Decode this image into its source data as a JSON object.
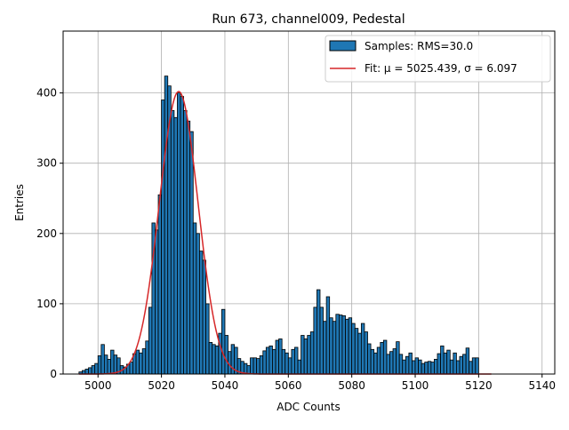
{
  "chart_data": {
    "type": "bar",
    "title": "Run 673, channel009, Pedestal",
    "xlabel": "ADC Counts",
    "ylabel": "Entries",
    "xlim": [
      4989,
      5144
    ],
    "ylim": [
      0,
      488
    ],
    "xticks": [
      5000,
      5020,
      5040,
      5060,
      5080,
      5100,
      5120,
      5140
    ],
    "yticks": [
      0,
      100,
      200,
      300,
      400
    ],
    "grid": true,
    "legend_placement": "top-right",
    "bin_width": 1,
    "histogram": {
      "name": "Samples: RMS=30.0",
      "color": "#1f77b4",
      "edgecolor": "#000000",
      "bin_starts": [
        4994,
        4995,
        4996,
        4997,
        4998,
        4999,
        5000,
        5001,
        5002,
        5003,
        5004,
        5005,
        5006,
        5007,
        5008,
        5009,
        5010,
        5011,
        5012,
        5013,
        5014,
        5015,
        5016,
        5017,
        5018,
        5019,
        5020,
        5021,
        5022,
        5023,
        5024,
        5025,
        5026,
        5027,
        5028,
        5029,
        5030,
        5031,
        5032,
        5033,
        5034,
        5035,
        5036,
        5037,
        5038,
        5039,
        5040,
        5041,
        5042,
        5043,
        5044,
        5045,
        5046,
        5047,
        5048,
        5049,
        5050,
        5051,
        5052,
        5053,
        5054,
        5055,
        5056,
        5057,
        5058,
        5059,
        5060,
        5061,
        5062,
        5063,
        5064,
        5065,
        5066,
        5067,
        5068,
        5069,
        5070,
        5071,
        5072,
        5073,
        5074,
        5075,
        5076,
        5077,
        5078,
        5079,
        5080,
        5081,
        5082,
        5083,
        5084,
        5085,
        5086,
        5087,
        5088,
        5089,
        5090,
        5091,
        5092,
        5093,
        5094,
        5095,
        5096,
        5097,
        5098,
        5099,
        5100,
        5101,
        5102,
        5103,
        5104,
        5105,
        5106,
        5107,
        5108,
        5109,
        5110,
        5111,
        5112,
        5113,
        5114,
        5115,
        5116,
        5117,
        5118,
        5119,
        5120,
        5121,
        5122,
        5123
      ],
      "values": [
        3,
        5,
        7,
        9,
        12,
        15,
        26,
        42,
        27,
        21,
        34,
        27,
        23,
        12,
        10,
        14,
        17,
        29,
        34,
        30,
        36,
        47,
        95,
        215,
        205,
        255,
        390,
        424,
        410,
        375,
        365,
        400,
        395,
        375,
        360,
        345,
        215,
        200,
        175,
        162,
        100,
        45,
        42,
        40,
        58,
        92,
        55,
        32,
        42,
        38,
        22,
        18,
        15,
        12,
        23,
        23,
        22,
        26,
        33,
        38,
        40,
        35,
        48,
        50,
        35,
        30,
        23,
        35,
        38,
        20,
        55,
        50,
        55,
        60,
        95,
        120,
        95,
        75,
        110,
        80,
        75,
        85,
        84,
        83,
        78,
        80,
        72,
        65,
        58,
        72,
        60,
        43,
        35,
        30,
        38,
        45,
        48,
        28,
        32,
        36,
        46,
        28,
        20,
        25,
        30,
        19,
        23,
        20,
        15,
        17,
        18,
        17,
        21,
        29,
        40,
        30,
        34,
        20,
        30,
        19,
        25,
        28,
        37,
        18,
        23,
        23
      ]
    },
    "fit": {
      "name": "Fit: μ = 5025.439, σ = 6.097",
      "color": "#d62728",
      "mu": 5025.439,
      "sigma": 6.097,
      "amplitude": 402,
      "x_range": [
        4994,
        5124
      ]
    }
  }
}
